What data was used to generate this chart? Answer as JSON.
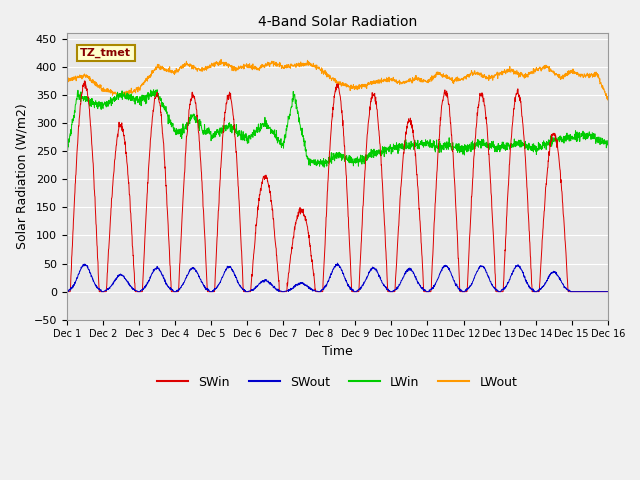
{
  "title": "4-Band Solar Radiation",
  "xlabel": "Time",
  "ylabel": "Solar Radiation (W/m2)",
  "ylim": [
    -50,
    460
  ],
  "xlim": [
    0,
    15
  ],
  "yticks": [
    -50,
    0,
    50,
    100,
    150,
    200,
    250,
    300,
    350,
    400,
    450
  ],
  "xtick_labels": [
    "Dec 1",
    "Dec 2",
    "Dec 3",
    "Dec 4",
    "Dec 5",
    "Dec 6",
    "Dec 7",
    "Dec 8",
    "Dec 9",
    "Dec 10",
    "Dec 11",
    "Dec 12",
    "Dec 13",
    "Dec 14",
    "Dec 15",
    "Dec 16"
  ],
  "colors": {
    "SWin": "#dd0000",
    "SWout": "#0000cc",
    "LWin": "#00cc00",
    "LWout": "#ff9900"
  },
  "label_box": "TZ_tmet",
  "label_box_color": "#880000",
  "label_box_bg": "#ffffcc",
  "label_box_edge": "#aa8800",
  "bg_color": "#e8e8e8",
  "fig_bg": "#f0f0f0"
}
